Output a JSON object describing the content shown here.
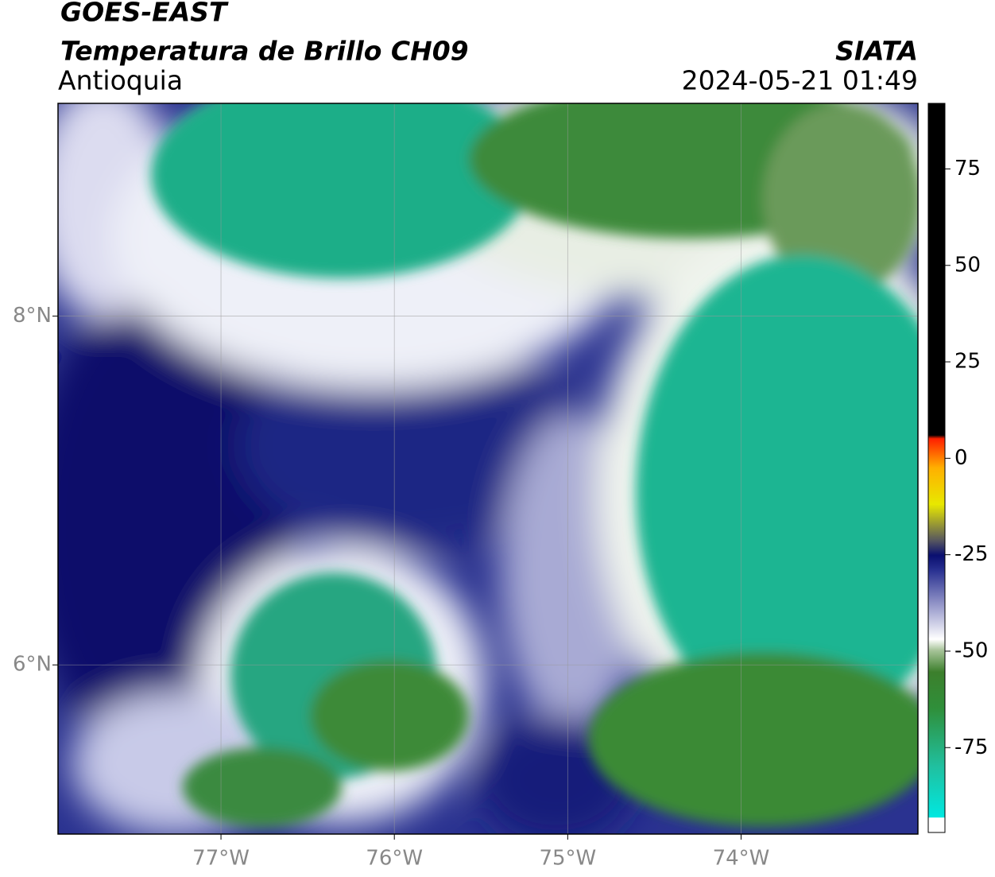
{
  "header": {
    "title": "GOES-EAST",
    "subtitle": "Temperatura de Brillo CH09",
    "region": "Antioquia",
    "source": "SIATA",
    "timestamp": "2024-05-21 01:49"
  },
  "map": {
    "xlim": [
      -77.94,
      -72.98
    ],
    "ylim": [
      5.03,
      9.22
    ],
    "xticks": [
      {
        "value": -77,
        "label": "77°W"
      },
      {
        "value": -76,
        "label": "76°W"
      },
      {
        "value": -75,
        "label": "75°W"
      },
      {
        "value": -74,
        "label": "74°W"
      }
    ],
    "yticks": [
      {
        "value": 6,
        "label": "6°N"
      },
      {
        "value": 8,
        "label": "8°N"
      }
    ],
    "grid": true
  },
  "colorbar": {
    "lim": [
      -97,
      92
    ],
    "ticks": [
      75,
      50,
      25,
      0,
      -25,
      -50,
      -75
    ]
  }
}
